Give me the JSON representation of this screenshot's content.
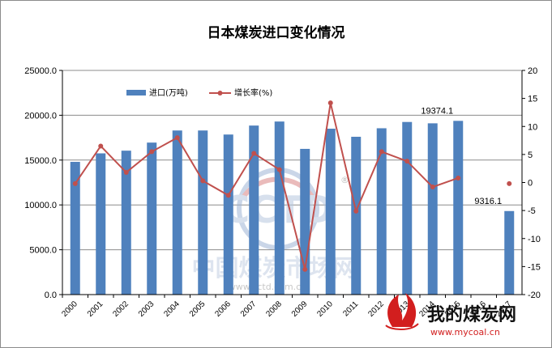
{
  "chart_data": {
    "type": "bar",
    "title": "日本煤炭进口变化情况",
    "categories": [
      "2000",
      "2001",
      "2002",
      "2003",
      "2004",
      "2005",
      "2006",
      "2007",
      "2008",
      "2009",
      "2010",
      "2011",
      "2012",
      "2013",
      "2014",
      "2015",
      "2016",
      "2017"
    ],
    "series": [
      {
        "name": "进口(万吨)",
        "type": "bar",
        "axis": "left",
        "color": "#4f81bd",
        "values": [
          14800,
          15750,
          16050,
          16950,
          18300,
          18300,
          17850,
          18850,
          19300,
          16250,
          18500,
          17600,
          18550,
          19250,
          19100,
          19374.1,
          null,
          9316.1
        ]
      },
      {
        "name": "增长率(%)",
        "type": "line",
        "axis": "right",
        "color": "#c0504d",
        "values": [
          -0.2,
          6.5,
          1.8,
          5.5,
          8.0,
          0.3,
          -2.3,
          5.2,
          2.3,
          -15.5,
          14.2,
          -5.1,
          5.5,
          3.8,
          -0.8,
          0.8,
          null,
          -0.2
        ]
      }
    ],
    "y_left": {
      "min": 0,
      "max": 25000,
      "step": 5000,
      "ticks": [
        "0.0",
        "5000.0",
        "10000.0",
        "15000.0",
        "20000.0",
        "25000.0"
      ]
    },
    "y_right": {
      "min": -20,
      "max": 20,
      "step": 5,
      "ticks": [
        "-20",
        "-15",
        "-10",
        "-5",
        "0",
        "5",
        "10",
        "15",
        "20"
      ]
    },
    "data_labels": [
      {
        "category": "2015",
        "text": "19374.1"
      },
      {
        "category": "2017",
        "text": "9316.1"
      }
    ],
    "grid": true,
    "legend_position": "top-left"
  },
  "watermark": {
    "logo_text": "CCTD",
    "site_cn": "中国煤炭市场网",
    "site_url": "www.cctd.com.cn",
    "badge_cn": "我的煤炭网",
    "badge_url": "www.mycoal.cn"
  },
  "colors": {
    "bar": "#4f81bd",
    "line": "#c0504d",
    "grid": "#8c8c8c",
    "watermark_red": "#d21e1e"
  }
}
